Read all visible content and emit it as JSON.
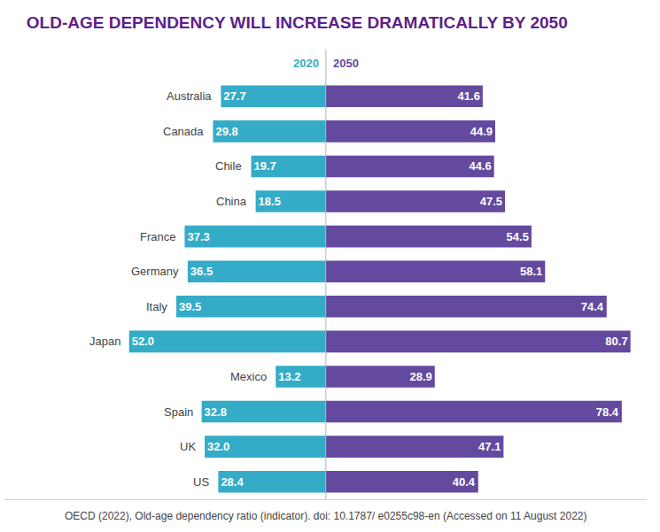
{
  "chart_data": {
    "type": "bar",
    "orientation": "horizontal",
    "title": "OLD-AGE DEPENDENCY WILL INCREASE DRAMATICALLY BY 2050",
    "source": "OECD (2022), Old-age dependency ratio (indicator). doi: 10.1787/ e0255c98-en (Accessed on 11 August 2022)",
    "categories": [
      "Australia",
      "Canada",
      "Chile",
      "China",
      "France",
      "Germany",
      "Italy",
      "Japan",
      "Mexico",
      "Spain",
      "UK",
      "US"
    ],
    "series": [
      {
        "name": "2020",
        "color": "#35acc7",
        "values": [
          27.7,
          29.8,
          19.7,
          18.5,
          37.3,
          36.5,
          39.5,
          52.0,
          13.2,
          32.8,
          32.0,
          28.4
        ],
        "value_labels": [
          "27.7",
          "29.8",
          "19.7",
          "18.5",
          "37.3",
          "36.5",
          "39.5",
          "52.0",
          "13.2",
          "32.8",
          "32.0",
          "28.4"
        ]
      },
      {
        "name": "2050",
        "color": "#634a9f",
        "values": [
          41.6,
          44.9,
          44.6,
          47.5,
          54.5,
          58.1,
          74.4,
          80.7,
          28.9,
          78.4,
          47.1,
          40.4
        ],
        "value_labels": [
          "41.6",
          "44.9",
          "44.6",
          "47.5",
          "54.5",
          "58.1",
          "74.4",
          "80.7",
          "28.9",
          "78.4",
          "47.1",
          "40.4"
        ]
      }
    ],
    "xlim": [
      0,
      85
    ],
    "data_labels": true,
    "grid": false,
    "tick_labels": false
  }
}
